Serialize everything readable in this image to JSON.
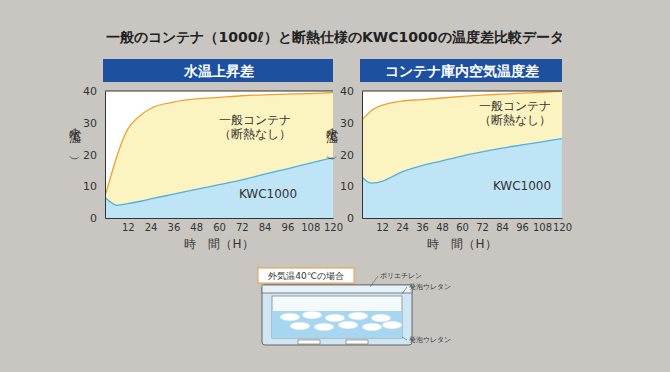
{
  "title": "一般のコンテナ（1000ℓ）と断熱仕様のKWC1000の温度差比較データ",
  "chart_data": [
    {
      "type": "area",
      "title": "水温上昇差",
      "xlabel": "時　間（H）",
      "ylabel": "水温（℃）",
      "x": [
        0,
        3,
        6,
        12,
        18,
        24,
        36,
        48,
        60,
        72,
        84,
        96,
        108,
        120
      ],
      "series": [
        {
          "name": "一般コンテナ\n（断熱なし）",
          "color": "#f0a030",
          "values": [
            7,
            13,
            19,
            28,
            32,
            34.5,
            36.5,
            37.5,
            38,
            38.5,
            38.8,
            39,
            39.2,
            39.5
          ]
        },
        {
          "name": "KWC1000",
          "color": "#4fb0e0",
          "values": [
            6.5,
            5,
            4,
            4.5,
            5.2,
            6,
            7.5,
            9,
            10.5,
            12,
            13.8,
            15.5,
            17.3,
            19
          ]
        }
      ],
      "xlim": [
        0,
        120
      ],
      "xticks": [
        12,
        24,
        36,
        48,
        60,
        72,
        84,
        96,
        108,
        120
      ],
      "ylim": [
        0,
        40
      ],
      "yticks": [
        0,
        10,
        20,
        30,
        40
      ]
    },
    {
      "type": "area",
      "title": "コンテナ庫内空気温度差",
      "xlabel": "時　間（H）",
      "ylabel": "水温（℃）",
      "x": [
        0,
        3,
        6,
        12,
        18,
        24,
        36,
        48,
        60,
        72,
        84,
        96,
        108,
        120
      ],
      "series": [
        {
          "name": "一般コンテナ\n（断熱なし）",
          "color": "#f0a030",
          "values": [
            31,
            32.5,
            34,
            35.5,
            36.3,
            36.8,
            37.3,
            37.8,
            38.3,
            38.7,
            39,
            39.3,
            39.6,
            40
          ]
        },
        {
          "name": "KWC1000",
          "color": "#4fb0e0",
          "values": [
            13,
            11.5,
            11,
            11.5,
            13,
            14.5,
            16.5,
            18,
            19.5,
            20.8,
            22,
            23,
            24,
            25
          ]
        }
      ],
      "xlim": [
        0,
        120
      ],
      "xticks": [
        12,
        24,
        36,
        48,
        60,
        72,
        84,
        96,
        108,
        120
      ],
      "ylim": [
        0,
        40
      ],
      "yticks": [
        0,
        10,
        20,
        30,
        40
      ]
    }
  ],
  "diagram": {
    "caption": "外気温40℃の場合",
    "labels": [
      "ポリエチレン",
      "発泡ウレタン",
      "発泡ウレタン"
    ]
  }
}
